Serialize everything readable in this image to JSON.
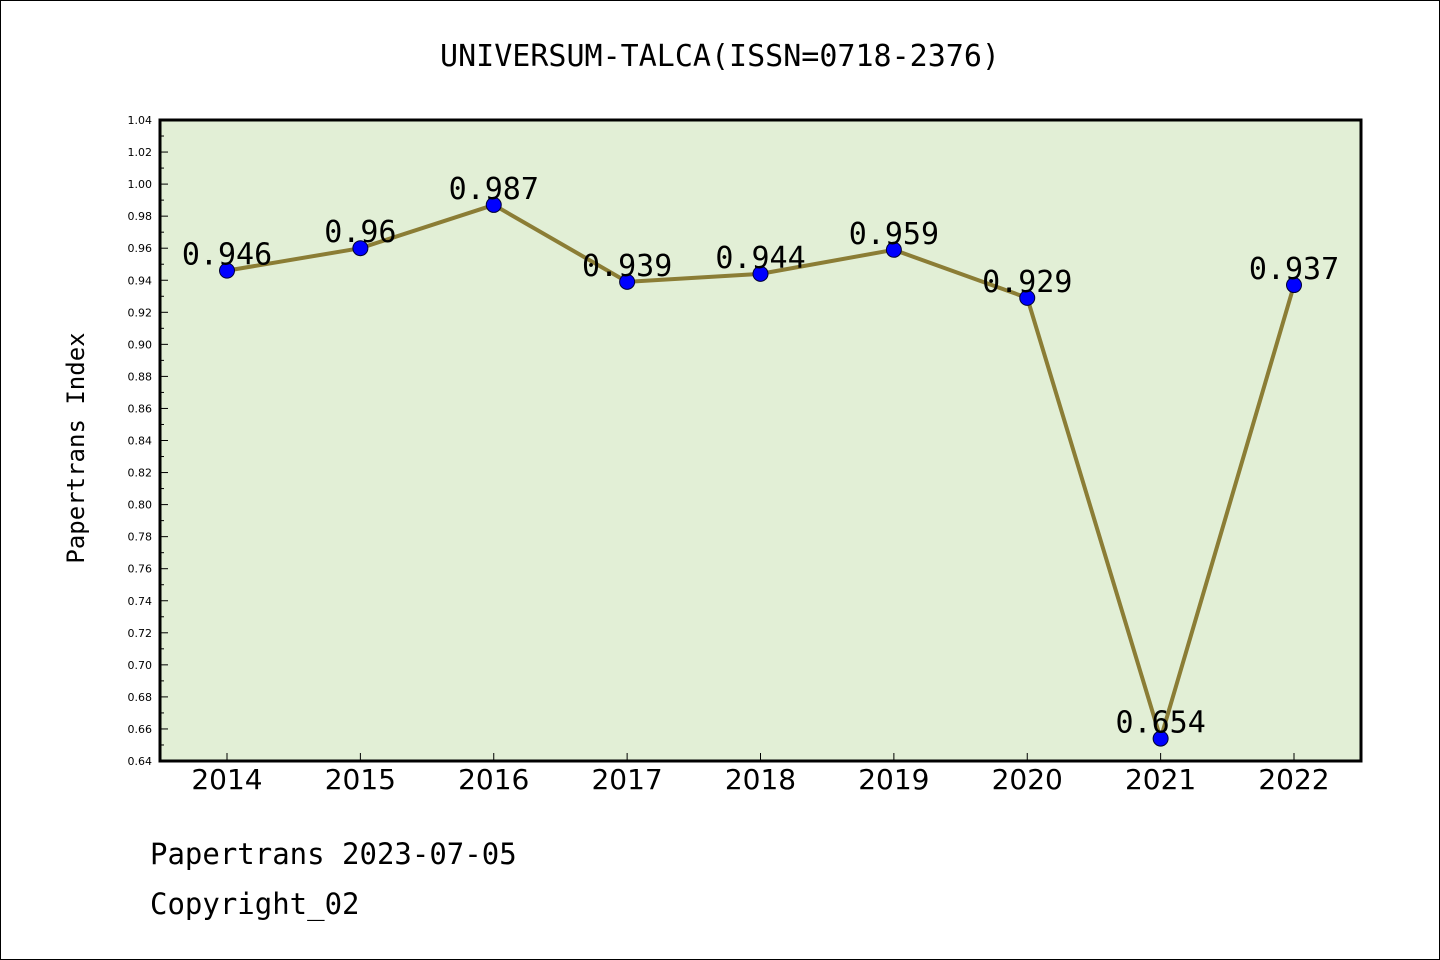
{
  "chart_data": {
    "type": "line",
    "title": "UNIVERSUM-TALCA(ISSN=0718-2376)",
    "xlabel": "",
    "ylabel": "Papertrans Index",
    "categories": [
      "2014",
      "2015",
      "2016",
      "2017",
      "2018",
      "2019",
      "2020",
      "2021",
      "2022"
    ],
    "series": [
      {
        "values": [
          0.946,
          0.96,
          0.987,
          0.939,
          0.944,
          0.959,
          0.929,
          0.654,
          0.937
        ],
        "data_labels": [
          "0.946",
          "0.96",
          "0.987",
          "0.939",
          "0.944",
          "0.959",
          "0.929",
          "0.654",
          "0.937"
        ]
      }
    ],
    "ylim": [
      0.64,
      1.04
    ],
    "yticks": [
      "0.64",
      "0.66",
      "0.68",
      "0.70",
      "0.72",
      "0.74",
      "0.76",
      "0.78",
      "0.80",
      "0.82",
      "0.84",
      "0.86",
      "0.88",
      "0.90",
      "0.92",
      "0.94",
      "0.96",
      "0.98",
      "1.00",
      "1.02",
      "1.04"
    ],
    "grid": false,
    "legend": "none"
  },
  "colors": {
    "plot_background": "#e2efd6",
    "line": "#8b7d35",
    "marker": "#0000ff"
  },
  "footer": {
    "line1": "Papertrans 2023-07-05",
    "line2": "Copyright_02"
  }
}
